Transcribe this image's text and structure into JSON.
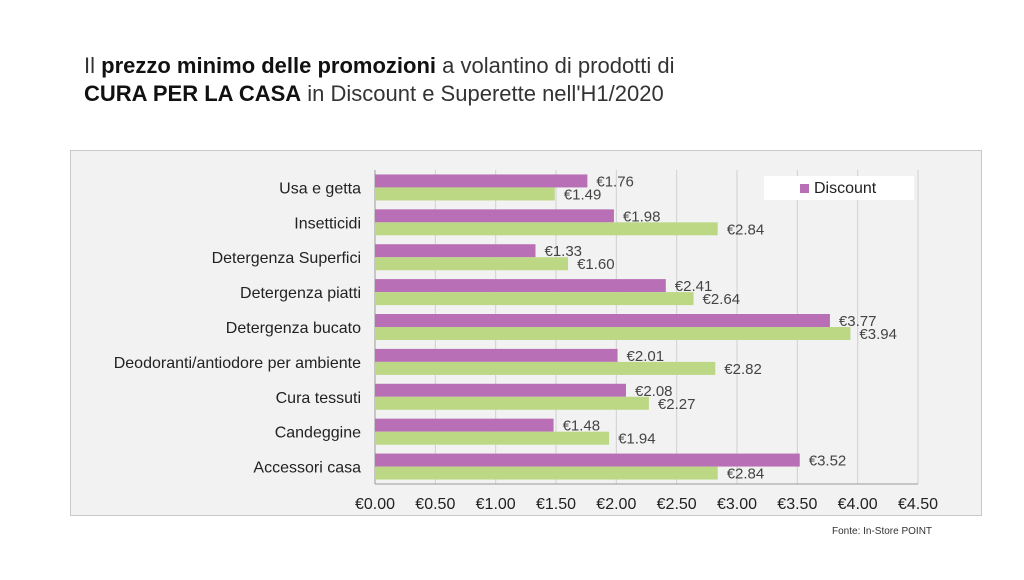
{
  "title": {
    "line1_prefix": "Il ",
    "line1_bold": "prezzo minimo delle promozioni",
    "line1_suffix": " a volantino di prodotti di",
    "line2_bold": "CURA PER LA CASA",
    "line2_suffix": " in Discount e Superette nell'H1/2020"
  },
  "source": "Fonte: In-Store POINT",
  "colors": {
    "discount": "#b86fb5",
    "superette": "#bcd885",
    "grid": "#d0d0d0"
  },
  "chart_data": {
    "type": "bar",
    "orientation": "horizontal",
    "categories": [
      "Usa e getta",
      "Insetticidi",
      "Detergenza Superfici",
      "Detergenza piatti",
      "Detergenza bucato",
      "Deodoranti/antiodore per ambiente",
      "Cura tessuti",
      "Candeggine",
      "Accessori casa"
    ],
    "series": [
      {
        "name": "Discount",
        "values": [
          1.76,
          1.98,
          1.33,
          2.41,
          3.77,
          2.01,
          2.08,
          1.48,
          3.52
        ]
      },
      {
        "values": [
          1.49,
          2.84,
          1.6,
          2.64,
          3.94,
          2.82,
          2.27,
          1.94,
          2.84
        ]
      }
    ],
    "xlim": [
      0,
      4.5
    ],
    "xticks": [
      "€0.00",
      "€0.50",
      "€1.00",
      "€1.50",
      "€2.00",
      "€2.50",
      "€3.00",
      "€3.50",
      "€4.00",
      "€4.50"
    ],
    "value_labels": [
      [
        "€1.76",
        "€1.98",
        "€1.33",
        "€2.41",
        "€3.77",
        "€2.01",
        "€2.08",
        "€1.48",
        "€3.52"
      ],
      [
        "€1.49",
        "€2.84",
        "€1.60",
        "€2.64",
        "€3.94",
        "€2.82",
        "€2.27",
        "€1.94",
        "€2.84"
      ]
    ],
    "legend_position": "top-right",
    "grid": true
  }
}
